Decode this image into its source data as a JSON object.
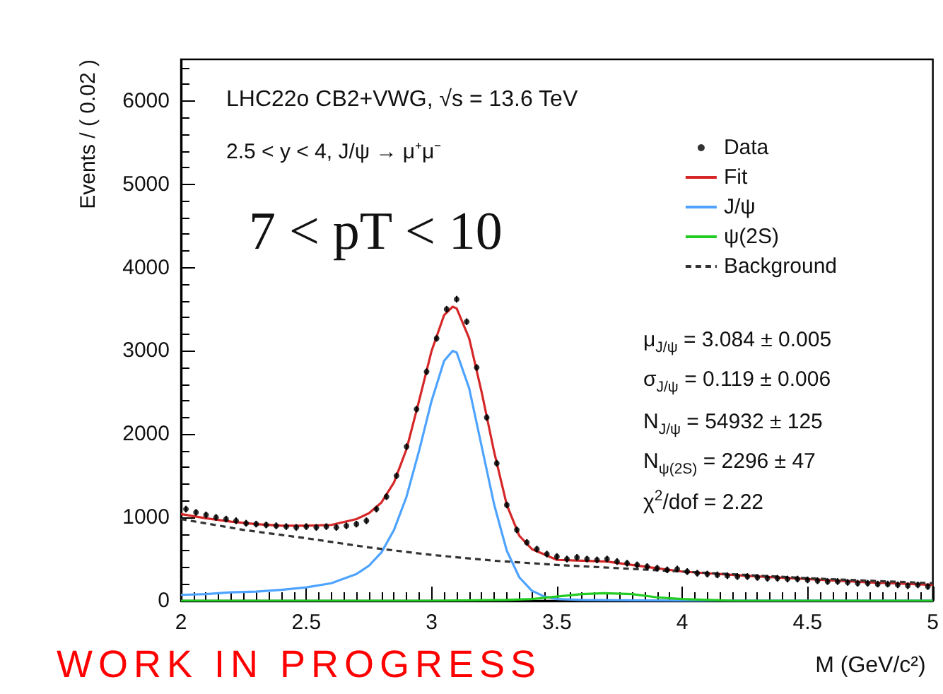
{
  "chart_data": {
    "type": "line",
    "xlabel": "M (GeV/c²)",
    "ylabel": "Events / ( 0.02 )",
    "xlim": [
      2,
      5
    ],
    "xticks": [
      2,
      2.5,
      3,
      3.5,
      4,
      4.5,
      5
    ],
    "ylim": [
      0,
      6500
    ],
    "yticks": [
      0,
      1000,
      2000,
      3000,
      4000,
      5000,
      6000
    ],
    "grid": false,
    "legend": "top right",
    "annotations": [
      "LHC22o CB2+VWG, √s = 13.6 TeV",
      "2.5 < y < 4, J/ψ → μ⁺μ⁻",
      "7 < pT < 10",
      "μ$_{J/ψ}$ = 3.084 ± 0.005",
      "σ$_{J/ψ}$ = 0.119 ± 0.006",
      "N$_{J/ψ}$ = 54932 ± 125",
      "N$_{ψ(2S)}$ = 2296 ± 47",
      "χ$^{2}$/dof = 2.22",
      "WORK IN PROGRESS"
    ],
    "series": [
      {
        "name": "Data",
        "type": "scatter",
        "marker": "circle",
        "color": "#000000",
        "x": [
          2.02,
          2.06,
          2.1,
          2.14,
          2.18,
          2.22,
          2.26,
          2.3,
          2.34,
          2.38,
          2.42,
          2.46,
          2.5,
          2.54,
          2.58,
          2.62,
          2.66,
          2.7,
          2.74,
          2.78,
          2.82,
          2.86,
          2.9,
          2.94,
          2.98,
          3.02,
          3.06,
          3.1,
          3.14,
          3.18,
          3.22,
          3.26,
          3.3,
          3.34,
          3.38,
          3.42,
          3.46,
          3.5,
          3.54,
          3.58,
          3.62,
          3.66,
          3.7,
          3.74,
          3.78,
          3.82,
          3.86,
          3.9,
          3.94,
          3.98,
          4.02,
          4.06,
          4.1,
          4.14,
          4.18,
          4.22,
          4.26,
          4.3,
          4.34,
          4.38,
          4.42,
          4.46,
          4.5,
          4.54,
          4.58,
          4.62,
          4.66,
          4.7,
          4.74,
          4.78,
          4.82,
          4.86,
          4.9,
          4.94,
          4.98
        ],
        "values": [
          1100,
          1060,
          1030,
          1000,
          980,
          960,
          930,
          920,
          910,
          900,
          890,
          880,
          890,
          880,
          890,
          880,
          900,
          920,
          960,
          1100,
          1250,
          1500,
          1850,
          2300,
          2750,
          3150,
          3500,
          3620,
          3350,
          2800,
          2200,
          1650,
          1150,
          850,
          700,
          620,
          560,
          530,
          500,
          520,
          500,
          490,
          500,
          470,
          450,
          430,
          410,
          390,
          370,
          380,
          350,
          330,
          320,
          310,
          300,
          290,
          290,
          280,
          270,
          270,
          260,
          260,
          250,
          240,
          230,
          230,
          220,
          210,
          210,
          200,
          200,
          190,
          180,
          190,
          170
        ],
        "errors": [
          40,
          40,
          40,
          40,
          40,
          40,
          40,
          40,
          40,
          40,
          40,
          40,
          40,
          40,
          40,
          40,
          40,
          40,
          40,
          40,
          40,
          40,
          40,
          40,
          40,
          40,
          40,
          40,
          40,
          40,
          40,
          40,
          40,
          40,
          40,
          40,
          40,
          40,
          40,
          40,
          40,
          40,
          40,
          40,
          40,
          40,
          40,
          40,
          40,
          40,
          40,
          40,
          40,
          40,
          40,
          40,
          40,
          40,
          40,
          40,
          40,
          40,
          40,
          40,
          40,
          40,
          40,
          40,
          40,
          40,
          40,
          40,
          40,
          40,
          40
        ]
      },
      {
        "name": "Fit",
        "marker": "none",
        "line_style": "solid",
        "color": "#d62728",
        "x": [
          2.0,
          2.1,
          2.2,
          2.3,
          2.4,
          2.5,
          2.6,
          2.7,
          2.75,
          2.8,
          2.85,
          2.9,
          2.95,
          3.0,
          3.05,
          3.084,
          3.1,
          3.15,
          3.2,
          3.25,
          3.3,
          3.35,
          3.4,
          3.5,
          3.6,
          3.7,
          3.8,
          3.9,
          4.0,
          4.25,
          4.5,
          4.75,
          5.0
        ],
        "values": [
          1040,
          990,
          950,
          920,
          900,
          900,
          910,
          980,
          1050,
          1180,
          1420,
          1820,
          2400,
          3000,
          3430,
          3530,
          3510,
          3150,
          2500,
          1780,
          1150,
          780,
          620,
          490,
          480,
          470,
          430,
          390,
          350,
          300,
          260,
          220,
          190
        ]
      },
      {
        "name": "J/ψ",
        "marker": "none",
        "line_style": "solid",
        "color": "#4da3ff",
        "x": [
          2.0,
          2.1,
          2.2,
          2.3,
          2.4,
          2.5,
          2.6,
          2.7,
          2.75,
          2.8,
          2.85,
          2.9,
          2.95,
          3.0,
          3.05,
          3.084,
          3.1,
          3.15,
          3.2,
          3.25,
          3.3,
          3.35,
          3.4,
          3.45,
          3.5,
          3.6,
          4.0,
          5.0
        ],
        "values": [
          70,
          80,
          100,
          110,
          130,
          160,
          210,
          320,
          420,
          580,
          850,
          1250,
          1800,
          2400,
          2880,
          3000,
          2980,
          2550,
          1850,
          1150,
          600,
          280,
          120,
          50,
          20,
          10,
          0,
          0
        ]
      },
      {
        "name": "ψ(2S)",
        "marker": "none",
        "line_style": "solid",
        "color": "#22cc22",
        "x": [
          2.0,
          3.0,
          3.3,
          3.4,
          3.5,
          3.6,
          3.69,
          3.8,
          3.9,
          4.0,
          4.1,
          4.2,
          5.0
        ],
        "values": [
          0,
          0,
          10,
          20,
          50,
          80,
          90,
          80,
          40,
          20,
          10,
          0,
          0
        ]
      },
      {
        "name": "Background",
        "marker": "none",
        "line_style": "dashed",
        "color": "#333333",
        "x": [
          2.0,
          2.25,
          2.5,
          2.75,
          3.0,
          3.25,
          3.5,
          3.75,
          4.0,
          4.25,
          4.5,
          4.75,
          5.0
        ],
        "values": [
          980,
          850,
          750,
          640,
          550,
          480,
          430,
          390,
          350,
          310,
          270,
          240,
          210
        ]
      }
    ]
  }
}
